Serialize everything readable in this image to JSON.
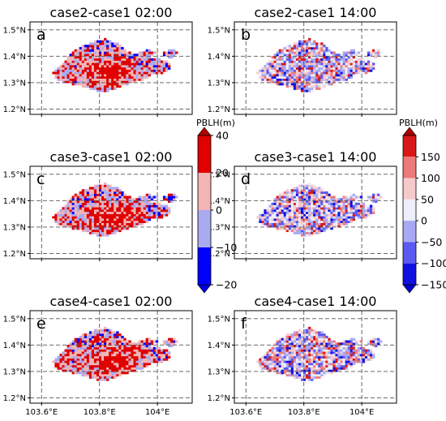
{
  "chart_data": {
    "type": "heatmap",
    "variable": "PBLH(m)",
    "lat_ticks": [
      "1.2°N",
      "1.3°N",
      "1.4°N",
      "1.5°N"
    ],
    "lon_ticks": [
      "103.6°E",
      "103.8°E",
      "104°E"
    ],
    "lat_range": [
      1.18,
      1.53
    ],
    "lon_range": [
      103.56,
      104.12
    ],
    "grid": true,
    "panels": [
      {
        "letter": "a",
        "title": "case2-case1 02:00",
        "colorbar": "left",
        "seed": 11
      },
      {
        "letter": "b",
        "title": "case2-case1 14:00",
        "colorbar": "right",
        "seed": 23
      },
      {
        "letter": "c",
        "title": "case3-case1 02:00",
        "colorbar": "left",
        "seed": 37
      },
      {
        "letter": "d",
        "title": "case3-case1 14:00",
        "colorbar": "right",
        "seed": 41
      },
      {
        "letter": "e",
        "title": "case4-case1 02:00",
        "colorbar": "left",
        "seed": 53
      },
      {
        "letter": "f",
        "title": "case4-case1 14:00",
        "colorbar": "right",
        "seed": 67
      }
    ],
    "colorbars": [
      {
        "id": "left",
        "label": "PBLH(m)",
        "levels": [
          -20,
          -10,
          0,
          20,
          40
        ],
        "tick_labels": [
          "−20",
          "−10",
          "0",
          "20",
          "40"
        ],
        "colors": [
          "#0000ff",
          "#aaaaf0",
          "#f2b4b4",
          "#e00000"
        ],
        "extend_low": "#0000dd",
        "extend_high": "#b00000"
      },
      {
        "id": "right",
        "label": "PBLH(m)",
        "levels": [
          -150,
          -100,
          -50,
          0,
          50,
          100,
          150
        ],
        "tick_labels": [
          "−150",
          "−100",
          "−50",
          "0",
          "50",
          "100",
          "150"
        ],
        "colors": [
          "#1010e0",
          "#5a5af0",
          "#a8a8f4",
          "#eeeefa",
          "#f6caca",
          "#ee7a7a",
          "#d81818"
        ],
        "extend_low": "#0000cc",
        "extend_high": "#aa0000"
      }
    ]
  }
}
